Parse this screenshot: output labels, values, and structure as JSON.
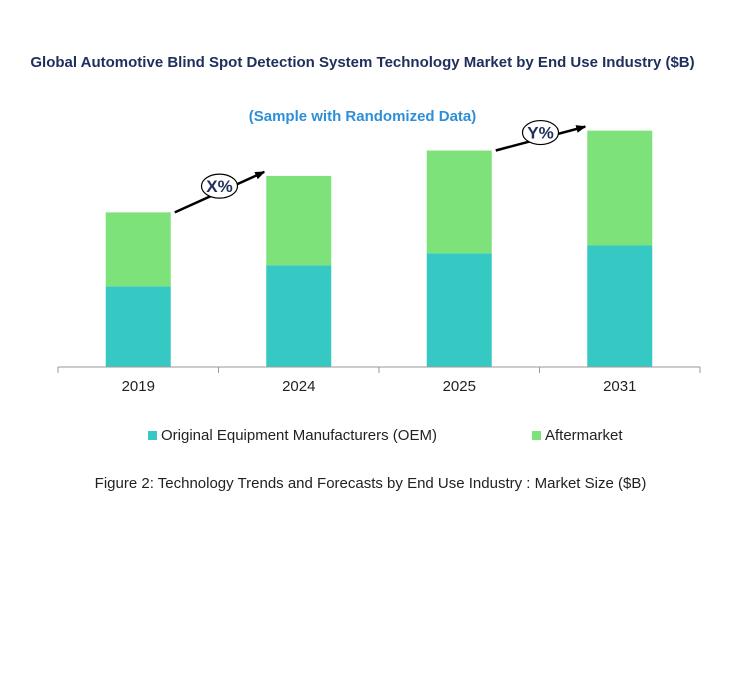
{
  "chart_data": {
    "type": "bar",
    "stacked": true,
    "title": "Global Automotive Blind Spot Detection System Technology Market by End Use Industry ($B)",
    "subtitle": "(Sample with Randomized Data)",
    "categories": [
      "2019",
      "2024",
      "2025",
      "2031"
    ],
    "series": [
      {
        "name": "Original Equipment Manufacturers (OEM)",
        "color": "#36c9c3",
        "values": [
          73,
          92,
          103,
          110
        ]
      },
      {
        "name": "Aftermarket",
        "color": "#7ee27b",
        "values": [
          67,
          81,
          93,
          104
        ]
      }
    ],
    "ylim": [
      0,
      220
    ],
    "annotations": [
      {
        "label": "X%",
        "from": "2019",
        "to": "2024"
      },
      {
        "label": "Y%",
        "from": "2025",
        "to": "2031"
      }
    ],
    "legend_position": "bottom",
    "grid": false,
    "caption": "Figure 2: Technology  Trends  and Forecasts by End Use Industry  : Market Size ($B)"
  }
}
